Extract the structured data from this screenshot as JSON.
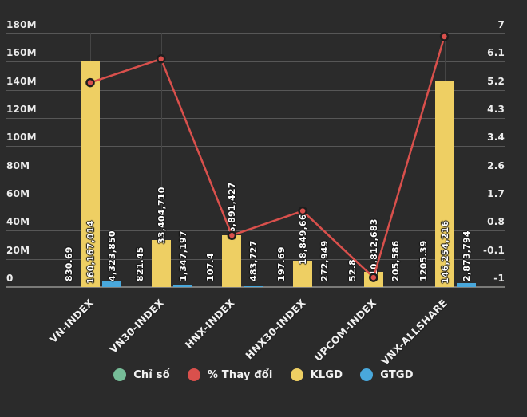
{
  "colors": {
    "background": "#2b2b2b",
    "grid": "#575757",
    "grid_vertical": "#454545",
    "axis_text": "#ececec",
    "value_label_text": "#ffffff",
    "green": "#76bd98",
    "red": "#d9504c",
    "yellow": "#eecf63",
    "blue": "#49a8dc"
  },
  "chart_data": {
    "type": "combo-bar-line",
    "title": "",
    "categories": [
      "VN-INDEX",
      "VN30-INDEX",
      "HNX-INDEX",
      "HNX30-INDEX",
      "UPCOM-INDEX",
      "VNX-ALLSHARE"
    ],
    "left_axis": {
      "min": 0,
      "max": 180000000,
      "ticks": [
        "0",
        "20M",
        "40M",
        "60M",
        "80M",
        "100M",
        "120M",
        "140M",
        "160M",
        "180M"
      ],
      "grid": true
    },
    "right_axis": {
      "min": -1,
      "max": 7,
      "ticks": [
        "-1",
        "-0.1",
        "0.8",
        "1.7",
        "2.6",
        "3.4",
        "4.3",
        "5.2",
        "6.1",
        "7"
      ]
    },
    "series": [
      {
        "name": "Chỉ số",
        "type": "bar",
        "axis": "left",
        "color_key": "green",
        "values": [
          830.69,
          821.45,
          107.4,
          197.69,
          52.8,
          1205.39
        ],
        "labels": [
          "830.69",
          "821.45",
          "107.4",
          "197.69",
          "52.8",
          "1205.39"
        ]
      },
      {
        "name": "% Thay đổi",
        "type": "line",
        "axis": "right",
        "color_key": "red",
        "values": [
          5.45,
          6.2,
          0.63,
          1.4,
          -0.7,
          6.9
        ],
        "values_estimated_from_pixels": true,
        "labels": [
          "",
          "",
          "",
          "",
          "",
          ""
        ]
      },
      {
        "name": "KLGD",
        "type": "bar",
        "axis": "left",
        "color_key": "yellow",
        "values": [
          160167014,
          33404710,
          36891427,
          18849663,
          10812683,
          146254216
        ],
        "labels": [
          "160,167,014",
          "33,404,710",
          "36,891,427",
          "18,849,663",
          "10,812,683",
          "146,254,216"
        ]
      },
      {
        "name": "GTGD",
        "type": "bar",
        "axis": "left",
        "color_key": "blue",
        "values": [
          4323850,
          1347197,
          483727,
          272949,
          205586,
          2873794
        ],
        "labels": [
          "4,323,850",
          "1,347,197",
          "483,727",
          "272,949",
          "205,586",
          "2,873,794"
        ]
      }
    ],
    "legend": {
      "position": "bottom",
      "items": [
        {
          "label": "Chỉ số",
          "color_key": "green"
        },
        {
          "label": "% Thay đổi",
          "color_key": "red"
        },
        {
          "label": "KLGD",
          "color_key": "yellow"
        },
        {
          "label": "GTGD",
          "color_key": "blue"
        }
      ]
    }
  }
}
